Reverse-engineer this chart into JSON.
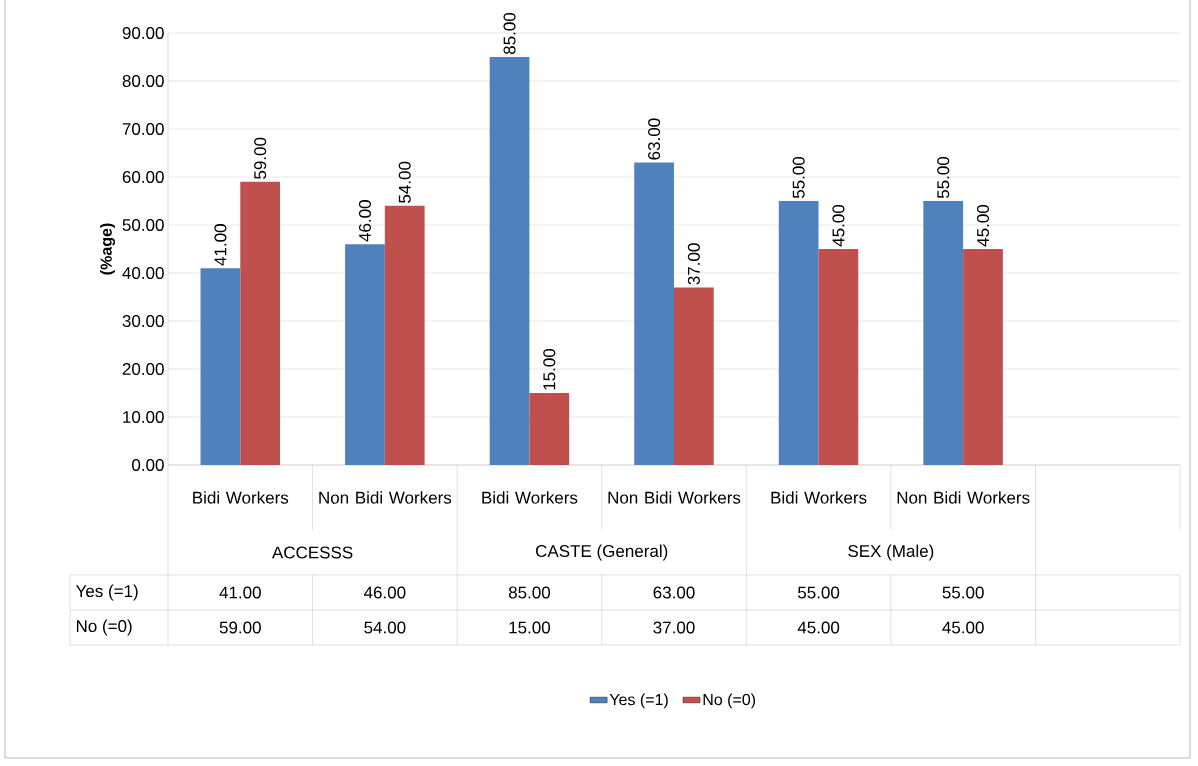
{
  "chart_data": {
    "type": "bar",
    "ylabel": "(%age)",
    "categories": [
      "Bidi Workers",
      "Non Bidi Workers",
      "Bidi Workers",
      "Non Bidi Workers",
      "Bidi Workers",
      "Non Bidi Workers",
      null
    ],
    "series": [
      {
        "name": "Yes (=1)",
        "color": "#4f81bd",
        "values": [
          41,
          46,
          85,
          63,
          55,
          55,
          null
        ],
        "value_labels": [
          "41.00",
          "46.00",
          "85.00",
          "63.00",
          "55.00",
          "55.00",
          null
        ]
      },
      {
        "name": "No (=0)",
        "color": "#c0504d",
        "values": [
          59,
          54,
          15,
          37,
          45,
          45,
          null
        ],
        "value_labels": [
          "59.00",
          "54.00",
          "15.00",
          "37.00",
          "45.00",
          "45.00",
          null
        ]
      }
    ],
    "annotations": [
      "ACCESSS",
      "CASTE (General)",
      "SEX (Male)"
    ],
    "ylim": [
      0,
      90
    ],
    "yticks": [
      {
        "value": 0,
        "label": "0.00"
      },
      {
        "value": 10,
        "label": "10.00"
      },
      {
        "value": 20,
        "label": "20.00"
      },
      {
        "value": 30,
        "label": "30.00"
      },
      {
        "value": 40,
        "label": "40.00"
      },
      {
        "value": 50,
        "label": "50.00"
      },
      {
        "value": 60,
        "label": "60.00"
      },
      {
        "value": 70,
        "label": "70.00"
      },
      {
        "value": 80,
        "label": "80.00"
      },
      {
        "value": 90,
        "label": "90.00"
      }
    ],
    "grid": "y",
    "legend": "bottom"
  }
}
